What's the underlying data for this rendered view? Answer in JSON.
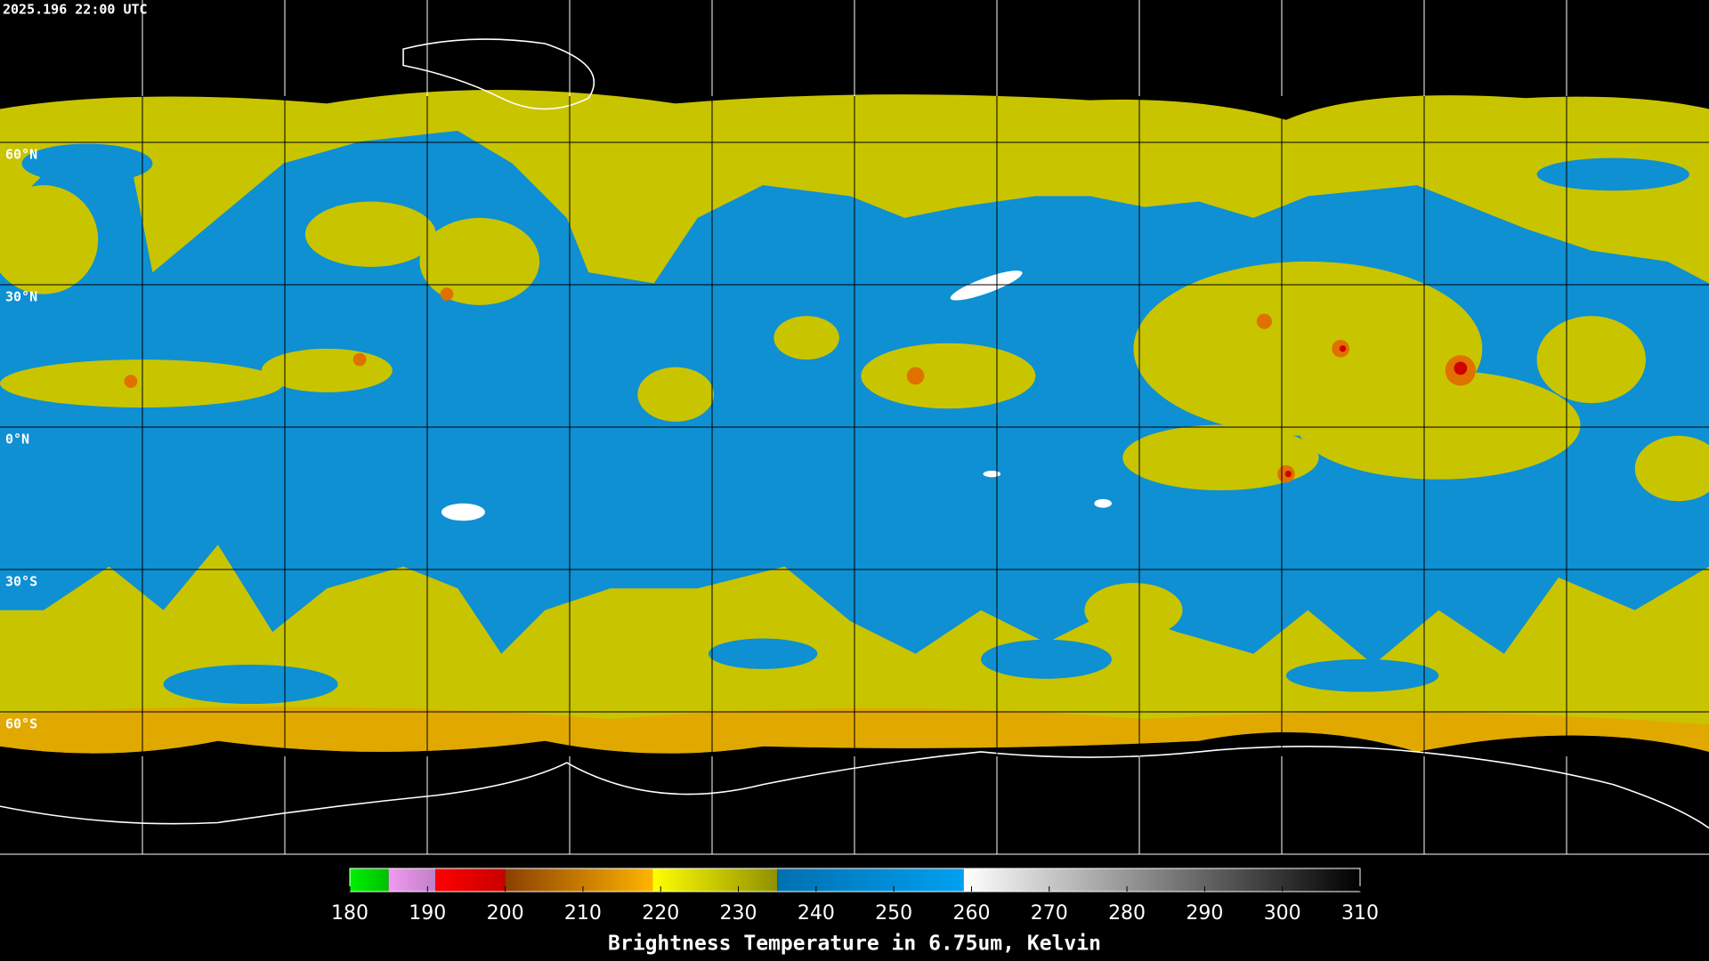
{
  "header": {
    "timestamp": "2025.196 22:00 UTC"
  },
  "map": {
    "lat_ticks": [
      {
        "value": 60,
        "label": "60°N"
      },
      {
        "value": 30,
        "label": "30°N"
      },
      {
        "value": 0,
        "label": "0°N"
      },
      {
        "value": -30,
        "label": "30°S"
      },
      {
        "value": -60,
        "label": "60°S"
      }
    ]
  },
  "colorbar": {
    "title": "Brightness Temperature in 6.75um, Kelvin",
    "lim": [
      180,
      310
    ],
    "ticks": [
      180,
      190,
      200,
      210,
      220,
      230,
      240,
      250,
      260,
      270,
      280,
      290,
      300,
      310
    ],
    "segments": [
      {
        "from": 180,
        "to": 185,
        "colors": [
          "#00f000",
          "#00c000"
        ]
      },
      {
        "from": 185,
        "to": 191,
        "colors": [
          "#f09af0",
          "#c080c8"
        ]
      },
      {
        "from": 191,
        "to": 200,
        "colors": [
          "#ff0000",
          "#c80000"
        ]
      },
      {
        "from": 200,
        "to": 219,
        "colors": [
          "#8a4000",
          "#ffb400"
        ]
      },
      {
        "from": 219,
        "to": 235,
        "colors": [
          "#ffff00",
          "#909000"
        ]
      },
      {
        "from": 235,
        "to": 259,
        "colors": [
          "#0070b0",
          "#00a0f0"
        ]
      },
      {
        "from": 259,
        "to": 310,
        "colors": [
          "#ffffff",
          "#000000"
        ]
      }
    ]
  }
}
